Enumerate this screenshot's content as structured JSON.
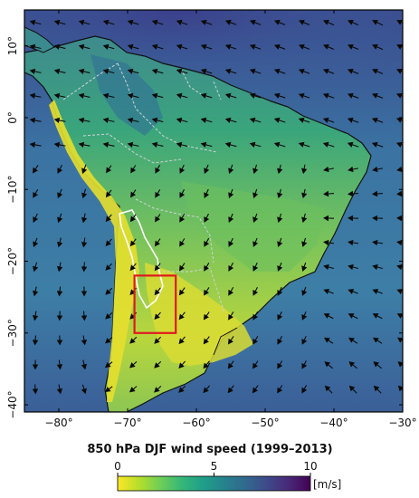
{
  "map": {
    "title": "850 hPa DJF wind speed (1999–2013)",
    "lon_ticks": [
      {
        "value": -80,
        "label": "−80°"
      },
      {
        "value": -70,
        "label": "−70°"
      },
      {
        "value": -60,
        "label": "−60°"
      },
      {
        "value": -50,
        "label": "−50°"
      },
      {
        "value": -40,
        "label": "−40°"
      },
      {
        "value": -30,
        "label": "−30°"
      }
    ],
    "lat_ticks": [
      {
        "value": 10,
        "label": "10°"
      },
      {
        "value": 0,
        "label": "0°"
      },
      {
        "value": -10,
        "label": "−10°"
      },
      {
        "value": -20,
        "label": "−20°"
      },
      {
        "value": -30,
        "label": "−30°"
      },
      {
        "value": -40,
        "label": "−40°"
      }
    ],
    "lon_range": [
      -85,
      -30
    ],
    "lat_range": [
      -41,
      15
    ],
    "highlight_box": {
      "lon": [
        -69,
        -63
      ],
      "lat": [
        -22,
        -30
      ],
      "color": "#e0191e"
    },
    "colorbar": {
      "ticks": [
        {
          "value": 0,
          "label": "0"
        },
        {
          "value": 5,
          "label": "5"
        },
        {
          "value": 10,
          "label": "10"
        }
      ],
      "range": [
        0,
        10
      ],
      "unit": "[m/s]",
      "colors": [
        "#fde725",
        "#b5de2b",
        "#6ece58",
        "#35b779",
        "#1f9e89",
        "#26828e",
        "#31688e",
        "#3e4989",
        "#482878",
        "#440154"
      ]
    },
    "palette": {
      "ocean_high": "#3c4f8c",
      "ocean_mid": "#3f78a4",
      "land_mid": "#4fae72",
      "land_low": "#c8d84a",
      "andes": "#e8e030",
      "arrow": "#0a0a0a",
      "coast": "#111111",
      "borders": "#cfd2d8",
      "region_outline": "#ffffff"
    }
  }
}
